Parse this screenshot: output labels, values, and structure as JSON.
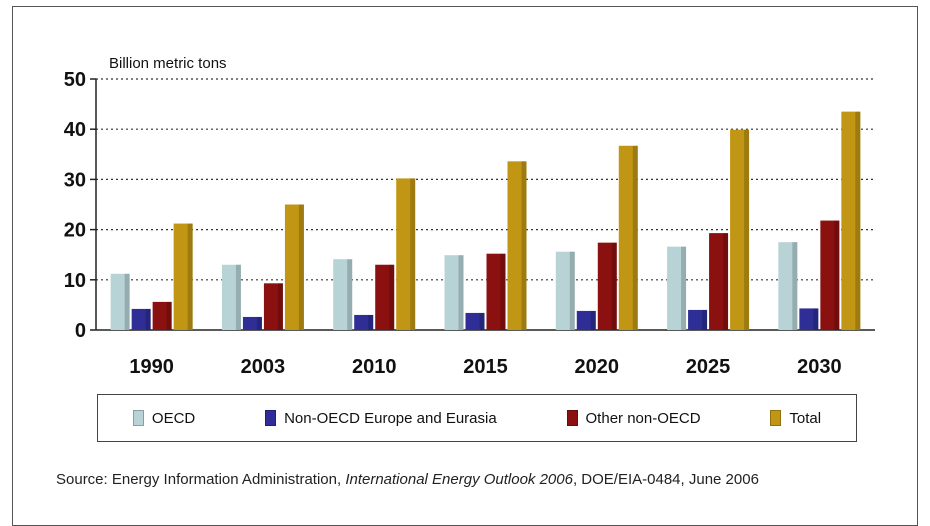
{
  "chart_data": {
    "type": "bar",
    "ylabel": "Billion metric tons",
    "ylim": [
      0,
      50
    ],
    "yticks": [
      0,
      10,
      20,
      30,
      40,
      50
    ],
    "grid": "horizontal-dotted",
    "legend_position": "bottom",
    "categories": [
      "1990",
      "2003",
      "2010",
      "2015",
      "2020",
      "2025",
      "2030"
    ],
    "series": [
      {
        "name": "OECD",
        "color": "#b7d3d6",
        "values": [
          11.2,
          13.0,
          14.1,
          14.9,
          15.6,
          16.6,
          17.5
        ]
      },
      {
        "name": "Non-OECD Europe and Eurasia",
        "color": "#2e2e96",
        "values": [
          4.2,
          2.6,
          3.0,
          3.4,
          3.8,
          4.0,
          4.3
        ]
      },
      {
        "name": "Other non-OECD",
        "color": "#8b1010",
        "values": [
          5.6,
          9.3,
          13.0,
          15.2,
          17.4,
          19.3,
          21.8
        ]
      },
      {
        "name": "Total",
        "color": "#c19614",
        "values": [
          21.2,
          25.0,
          30.2,
          33.6,
          36.7,
          39.9,
          43.5
        ]
      }
    ]
  },
  "source": {
    "prefix": "Source: Energy Information Administration, ",
    "italic": "International Energy Outlook 2006",
    "suffix": ", DOE/EIA-0484, June 2006"
  }
}
